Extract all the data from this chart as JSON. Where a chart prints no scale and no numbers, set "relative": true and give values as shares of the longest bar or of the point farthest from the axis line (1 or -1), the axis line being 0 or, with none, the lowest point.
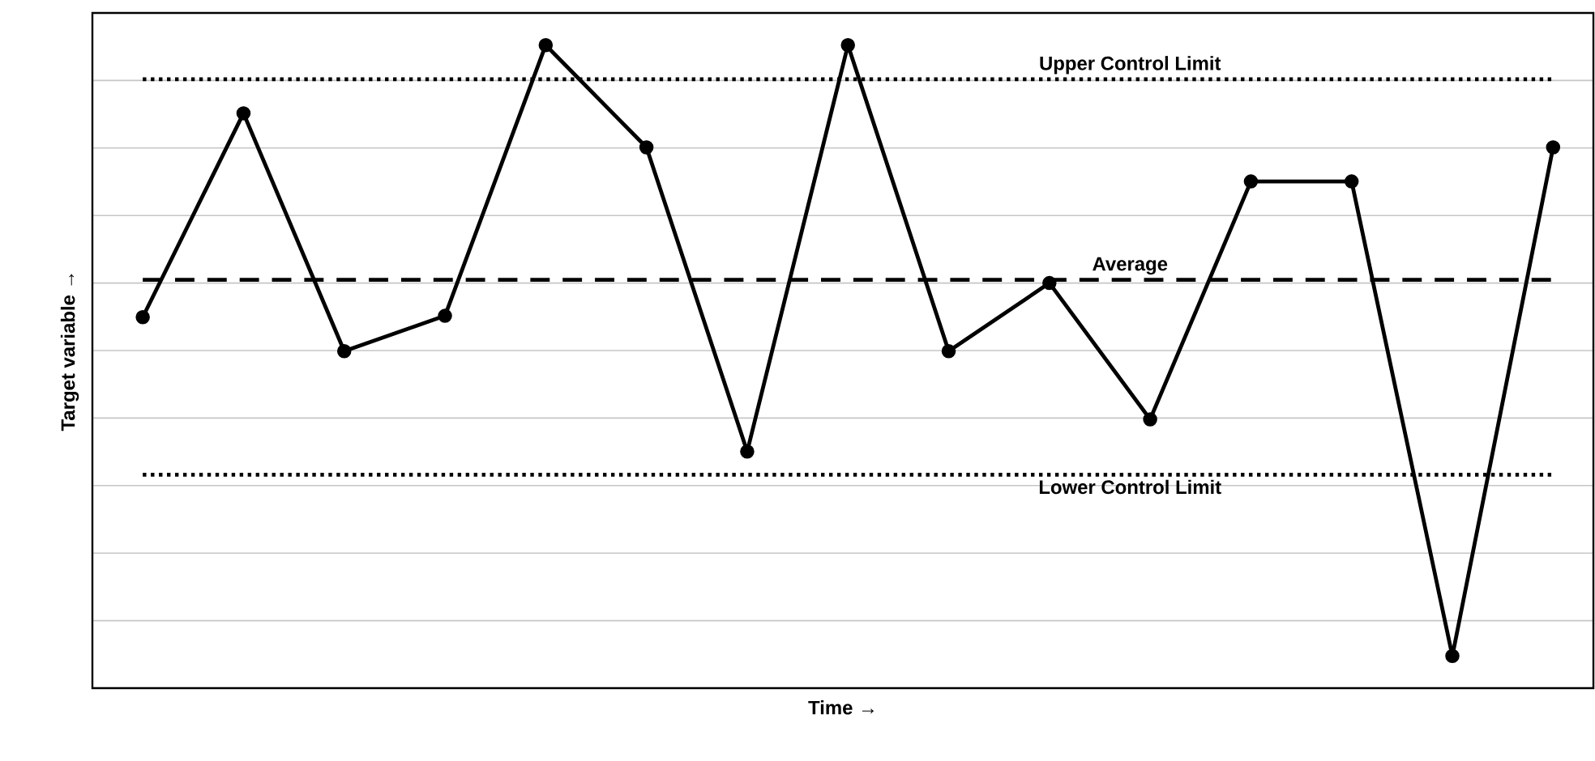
{
  "chart_data": {
    "type": "line",
    "xlabel": "Time →",
    "ylabel": "Target variable →",
    "relative": true,
    "categories": [
      null,
      null,
      null,
      null,
      null,
      null,
      null,
      null,
      null,
      null,
      null,
      null,
      null,
      null,
      null
    ],
    "series": [
      {
        "color": "#000000",
        "values": [
          0.577,
          0.894,
          0.524,
          0.579,
          1,
          0.841,
          0.368,
          1,
          0.524,
          0.63,
          0.418,
          0.788,
          0.788,
          0.05,
          0.841
        ]
      }
    ],
    "marker": "circle",
    "line_style": "solid",
    "grid": "y",
    "ref_lines": [
      {
        "axis": "y",
        "value": 0.947,
        "label": "Upper Control Limit",
        "line_style": "dotted",
        "color": "#000000"
      },
      {
        "axis": "y",
        "value": 0.635,
        "label": "Average",
        "line_style": "dashed",
        "color": "#000000"
      },
      {
        "axis": "y",
        "value": 0.332,
        "label": "Lower Control Limit",
        "line_style": "dotted",
        "color": "#000000"
      }
    ]
  }
}
